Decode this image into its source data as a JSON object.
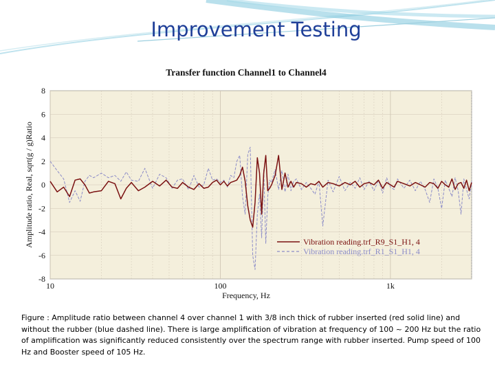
{
  "slide": {
    "title": "Improvement Testing",
    "caption": "Figure : Amplitude ratio between channel 4 over channel 1 with 3/8 inch thick of rubber inserted (red solid line) and without the rubber (blue dashed line). There is large amplification of vibration at frequency of 100 ~ 200 Hz but the ratio of amplification was significantly reduced consistently over the spectrum range with rubber inserted. Pump speed of 100 Hz and Booster speed of 105 Hz."
  },
  "colors": {
    "title": "#1f3f98",
    "plot_background": "#f4efdc",
    "with_rubber": "#7a1010",
    "without_rubber": "#8c8cc8",
    "grid": "#d0c6b4"
  },
  "chart_data": {
    "type": "line",
    "title": "Transfer function Channel1 to Channel4",
    "xlabel": "Frequency, Hz",
    "ylabel": "Amplitude ratio, Real, sqrt(g / g)Ratio",
    "x_scale": "log",
    "xlim": [
      10,
      3000
    ],
    "ylim": [
      -8,
      8
    ],
    "x_ticks": [
      10,
      100,
      1000
    ],
    "x_tick_labels": [
      "10",
      "100",
      "1k"
    ],
    "y_ticks": [
      -8,
      -6,
      -4,
      -2,
      0,
      2,
      4,
      6,
      8
    ],
    "y_tick_labels": [
      "-8",
      "-6",
      "-4",
      "-2",
      "0",
      "2",
      "4",
      "6",
      "8"
    ],
    "grid": true,
    "legend_position": "bottom-right",
    "series": [
      {
        "name": "Vibration reading.trf_R9_S1_H1, 4",
        "style": "solid",
        "color": "#7a1010",
        "x": [
          10,
          11,
          12,
          13,
          14,
          15,
          16,
          17,
          18,
          20,
          22,
          24,
          26,
          28,
          30,
          33,
          36,
          40,
          44,
          48,
          52,
          56,
          60,
          65,
          70,
          75,
          80,
          85,
          90,
          95,
          100,
          105,
          110,
          115,
          120,
          125,
          130,
          135,
          140,
          145,
          150,
          155,
          160,
          165,
          170,
          175,
          180,
          185,
          190,
          195,
          200,
          210,
          220,
          230,
          240,
          250,
          260,
          270,
          280,
          300,
          320,
          340,
          360,
          380,
          400,
          430,
          460,
          500,
          540,
          580,
          620,
          660,
          700,
          750,
          800,
          850,
          900,
          950,
          1000,
          1050,
          1100,
          1200,
          1300,
          1400,
          1500,
          1600,
          1700,
          1800,
          1900,
          2000,
          2100,
          2200,
          2300,
          2400,
          2500,
          2600,
          2700,
          2800,
          2900,
          3000
        ],
        "y": [
          0.3,
          -0.6,
          -0.2,
          -1.0,
          0.4,
          0.5,
          0.0,
          -0.7,
          -0.6,
          -0.5,
          0.3,
          0.1,
          -1.2,
          -0.3,
          0.2,
          -0.5,
          -0.2,
          0.3,
          -0.1,
          0.4,
          -0.2,
          -0.3,
          0.2,
          -0.2,
          -0.4,
          0.1,
          -0.3,
          -0.2,
          0.2,
          0.4,
          0.0,
          0.3,
          -0.1,
          0.2,
          0.3,
          0.4,
          0.8,
          1.5,
          0.3,
          -1.8,
          -3.0,
          -3.6,
          -1.5,
          2.3,
          1.0,
          -2.5,
          1.0,
          2.5,
          -0.5,
          -0.3,
          0.0,
          0.8,
          2.5,
          -0.4,
          1.0,
          -0.2,
          0.3,
          -0.2,
          0.2,
          0.1,
          -0.2,
          0.1,
          0.0,
          0.3,
          -0.2,
          0.2,
          0.1,
          -0.1,
          0.2,
          0.0,
          0.3,
          -0.2,
          0.1,
          0.2,
          0.0,
          0.4,
          -0.3,
          0.2,
          0.0,
          -0.2,
          0.3,
          0.1,
          -0.1,
          0.2,
          0.0,
          -0.2,
          0.2,
          0.1,
          -0.3,
          0.3,
          0.0,
          -0.2,
          0.5,
          -0.4,
          0.1,
          0.2,
          -0.3,
          0.4,
          -0.5,
          0.2
        ]
      },
      {
        "name": "Vibration reading.trf_R1_S1_H1, 4",
        "style": "dashed",
        "color": "#8c8cc8",
        "x": [
          10,
          11,
          12,
          13,
          14,
          15,
          16,
          17,
          18,
          20,
          22,
          24,
          26,
          28,
          30,
          33,
          36,
          40,
          44,
          48,
          52,
          56,
          60,
          65,
          70,
          75,
          80,
          85,
          90,
          95,
          100,
          105,
          110,
          115,
          120,
          125,
          130,
          135,
          140,
          145,
          150,
          155,
          160,
          165,
          170,
          175,
          180,
          185,
          190,
          195,
          200,
          210,
          220,
          230,
          240,
          250,
          260,
          270,
          280,
          300,
          320,
          340,
          360,
          380,
          400,
          430,
          460,
          500,
          540,
          580,
          620,
          660,
          700,
          750,
          800,
          850,
          900,
          950,
          1000,
          1050,
          1100,
          1200,
          1300,
          1400,
          1500,
          1600,
          1700,
          1800,
          1900,
          2000,
          2100,
          2200,
          2300,
          2400,
          2500,
          2600,
          2700,
          2800,
          2900,
          3000
        ],
        "y": [
          2.0,
          1.2,
          0.5,
          -1.5,
          -0.5,
          -1.4,
          0.3,
          0.8,
          0.6,
          1.0,
          0.6,
          0.8,
          0.3,
          1.1,
          0.4,
          0.3,
          1.4,
          -0.3,
          0.9,
          0.6,
          -0.3,
          0.4,
          0.5,
          -0.4,
          0.8,
          -0.2,
          0.0,
          1.4,
          0.4,
          0.5,
          0.2,
          0.4,
          -0.2,
          0.8,
          0.6,
          2.0,
          2.5,
          -1.0,
          -2.5,
          2.6,
          3.2,
          -6.0,
          -7.2,
          -2.5,
          -0.8,
          -4.5,
          1.3,
          -5.0,
          -1.0,
          0.4,
          0.2,
          1.3,
          -0.4,
          1.2,
          -0.6,
          0.9,
          -0.5,
          0.3,
          0.5,
          -0.4,
          0.2,
          -0.3,
          -0.8,
          0.3,
          -3.5,
          0.4,
          -0.6,
          0.7,
          -0.5,
          0.2,
          -0.3,
          0.6,
          -0.4,
          0.3,
          -0.5,
          0.4,
          -0.7,
          0.6,
          -0.2,
          -0.4,
          0.5,
          -0.3,
          0.4,
          -0.5,
          0.3,
          -0.4,
          -1.5,
          0.5,
          -0.3,
          -2.0,
          0.4,
          -0.3,
          -1.0,
          0.6,
          -0.5,
          -2.5,
          0.5,
          -0.4,
          -1.2,
          0.3
        ]
      }
    ]
  }
}
